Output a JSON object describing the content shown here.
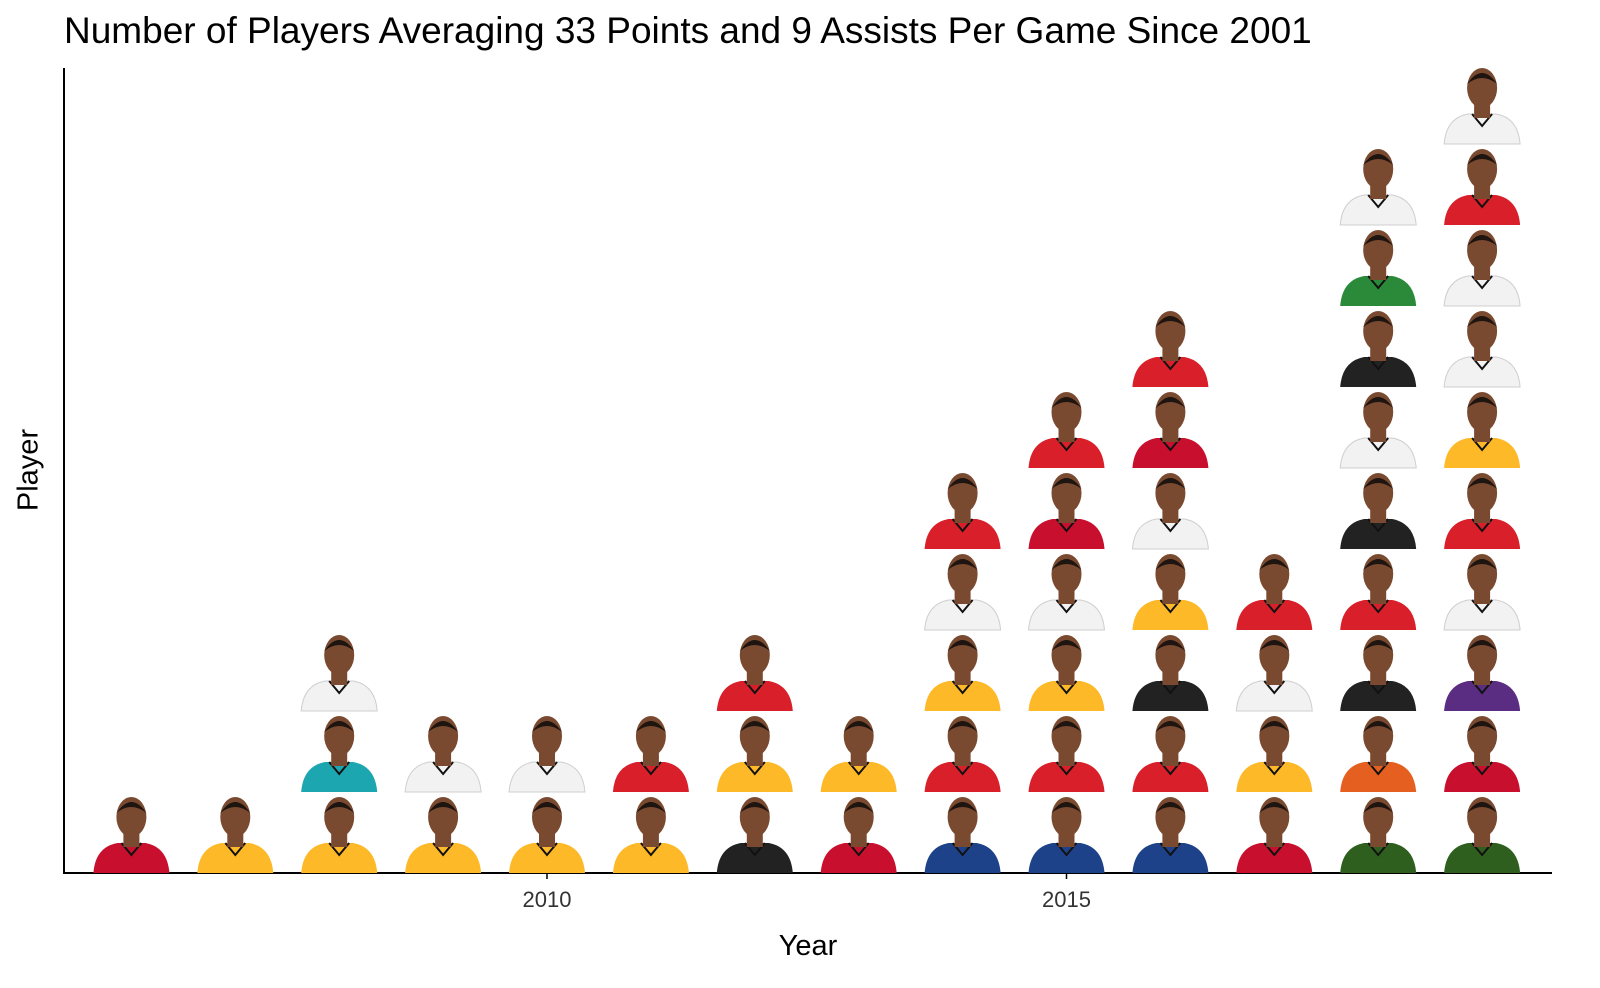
{
  "chart_data": {
    "type": "scatter",
    "title": "Number of Players Averaging 33 Points and 9 Assists Per Game Since 2001",
    "xlabel": "Year",
    "ylabel": "Player",
    "x_ticks": [
      "2010",
      "2015"
    ],
    "xlim": [
      2005.4,
      2019.8
    ],
    "grid": false,
    "legend": "none",
    "points_note": "each marker is a player headshot",
    "counts_by_year": [
      {
        "year": 2006,
        "count": 1
      },
      {
        "year": 2007,
        "count": 1
      },
      {
        "year": 2008,
        "count": 3
      },
      {
        "year": 2009,
        "count": 2
      },
      {
        "year": 2010,
        "count": 2
      },
      {
        "year": 2011,
        "count": 2
      },
      {
        "year": 2012,
        "count": 3
      },
      {
        "year": 2013,
        "count": 2
      },
      {
        "year": 2014,
        "count": 5
      },
      {
        "year": 2015,
        "count": 6
      },
      {
        "year": 2016,
        "count": 7
      },
      {
        "year": 2017,
        "count": 4
      },
      {
        "year": 2018,
        "count": 9
      },
      {
        "year": 2019,
        "count": 10
      }
    ],
    "jersey_colors_by_year": {
      "2006": [
        "#c8102e"
      ],
      "2007": [
        "#fdb927"
      ],
      "2008": [
        "#fdb927",
        "#1ba6b0",
        "#f2f2f2"
      ],
      "2009": [
        "#fdb927",
        "#f2f2f2"
      ],
      "2010": [
        "#fdb927",
        "#f2f2f2"
      ],
      "2011": [
        "#fdb927",
        "#d9202a"
      ],
      "2012": [
        "#222222",
        "#fdb927",
        "#d9202a"
      ],
      "2013": [
        "#c8102e",
        "#fdb927"
      ],
      "2014": [
        "#1d428a",
        "#d9202a",
        "#fdb927",
        "#f2f2f2",
        "#d9202a"
      ],
      "2015": [
        "#1d428a",
        "#d9202a",
        "#fdb927",
        "#f2f2f2",
        "#c8102e",
        "#d9202a"
      ],
      "2016": [
        "#1d428a",
        "#d9202a",
        "#222222",
        "#fdb927",
        "#f2f2f2",
        "#c8102e",
        "#d9202a"
      ],
      "2017": [
        "#c8102e",
        "#fdb927",
        "#f2f2f2",
        "#d9202a"
      ],
      "2018": [
        "#2f5f1f",
        "#e56020",
        "#222222",
        "#d9202a",
        "#222222",
        "#f2f2f2",
        "#222222",
        "#2a8a3a",
        "#f2f2f2"
      ],
      "2019": [
        "#2f5f1f",
        "#c8102e",
        "#5a2d82",
        "#f2f2f2",
        "#d9202a",
        "#fdb927",
        "#f2f2f2",
        "#f2f2f2",
        "#d9202a",
        "#f2f2f2"
      ]
    }
  },
  "colors": {
    "axis": "#000000",
    "skin": "#7a4a30",
    "hair": "#1e1410"
  }
}
